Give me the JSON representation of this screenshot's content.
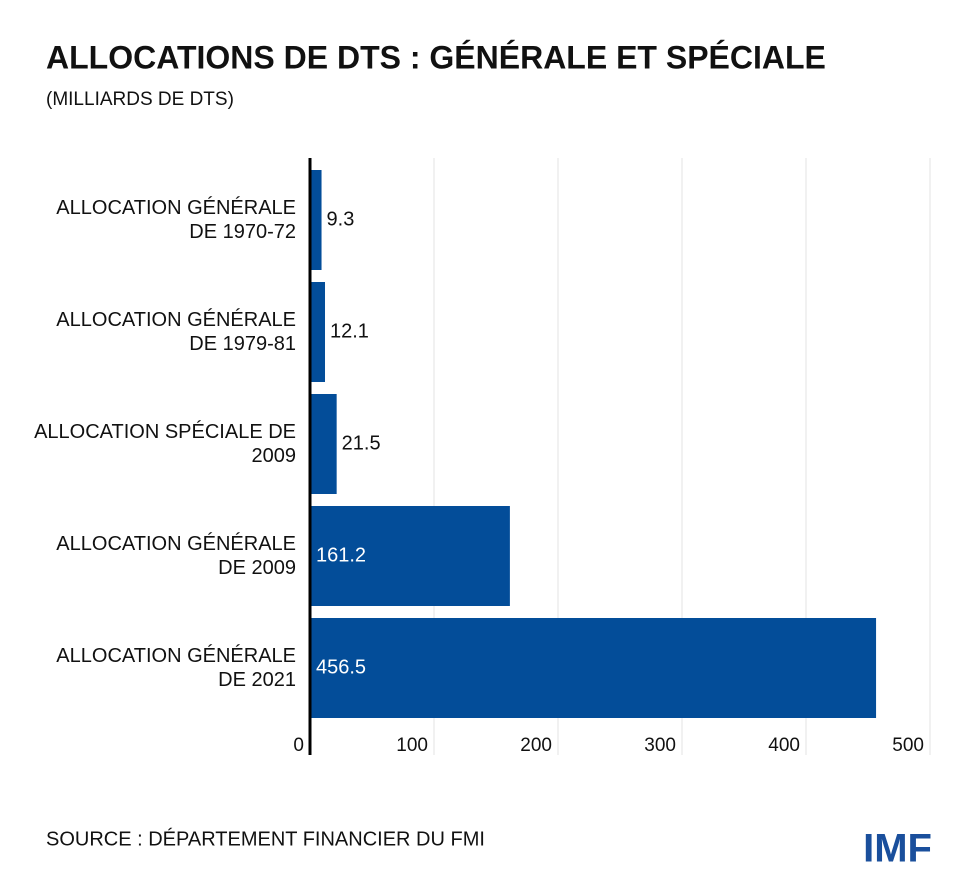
{
  "title": "ALLOCATIONS DE DTS : GÉNÉRALE ET SPÉCIALE",
  "subtitle": "(MILLIARDS DE DTS)",
  "source": "SOURCE : DÉPARTEMENT FINANCIER DU FMI",
  "logo": "IMF",
  "chart_data": {
    "type": "barh",
    "categories": [
      "ALLOCATION GÉNÉRALE DE 1970-72",
      "ALLOCATION GÉNÉRALE DE 1979-81",
      "ALLOCATION SPÉCIALE DE 2009",
      "ALLOCATION GÉNÉRALE DE 2009",
      "ALLOCATION GÉNÉRALE DE 2021"
    ],
    "values": [
      9.3,
      12.1,
      21.5,
      161.2,
      456.5
    ],
    "color": "#034d99",
    "xlim": [
      0,
      500
    ],
    "xticks": [
      0,
      100,
      200,
      300,
      400,
      500
    ],
    "grid": true
  }
}
